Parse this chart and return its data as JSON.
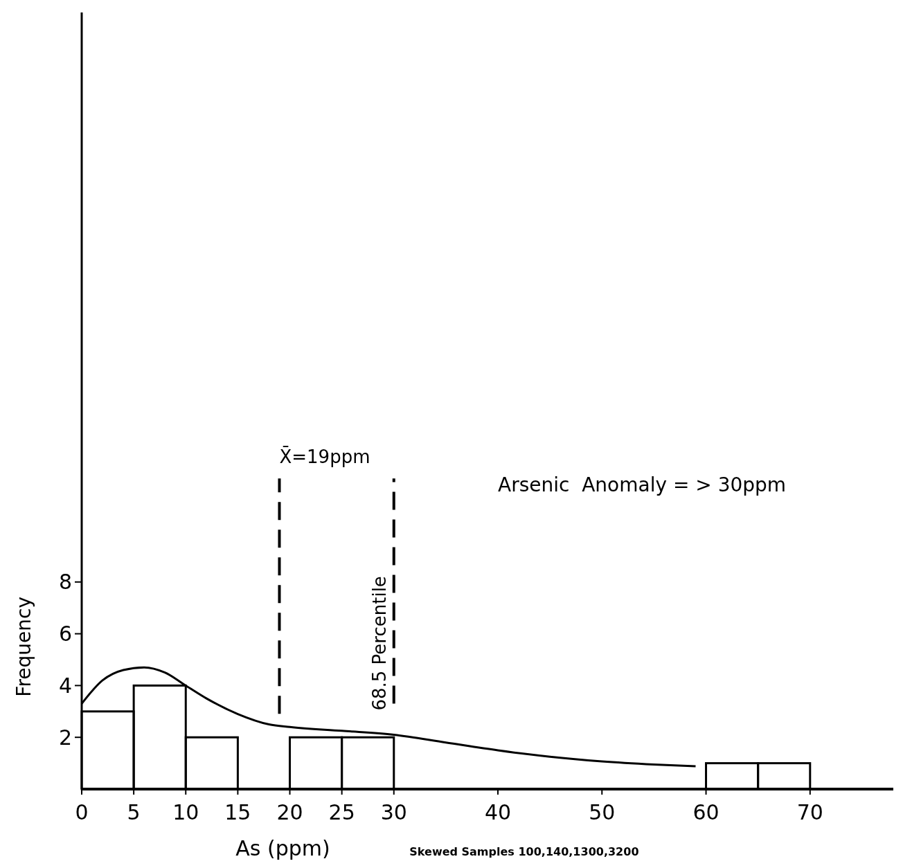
{
  "chart_data": {
    "type": "histogram",
    "xlabel": "As (ppm)",
    "ylabel": "Frequency",
    "bins": [
      0,
      5,
      10,
      15,
      20,
      25,
      30,
      35,
      40,
      45,
      50,
      55,
      60,
      65,
      70
    ],
    "values": [
      3,
      4,
      2,
      0,
      2,
      2,
      0,
      0,
      0,
      0,
      0,
      0,
      1,
      1
    ],
    "color": "#000000",
    "series": [
      {
        "type": "line",
        "color": "#000000",
        "x": [
          0,
          2,
          4,
          6,
          8,
          10,
          12,
          15,
          18,
          20,
          25,
          30,
          35,
          40,
          45,
          50,
          55,
          59
        ],
        "values": [
          3.3,
          4.2,
          4.6,
          4.7,
          4.5,
          4.0,
          3.5,
          2.9,
          2.5,
          2.4,
          2.25,
          2.1,
          1.8,
          1.5,
          1.25,
          1.07,
          0.95,
          0.88
        ]
      }
    ],
    "xlim": [
      0,
      78
    ],
    "ylim": [
      0,
      30
    ],
    "xticks": [
      0,
      5,
      10,
      15,
      20,
      25,
      30,
      40,
      50,
      60,
      70
    ],
    "yticks": [
      2,
      4,
      6,
      8
    ],
    "ref_lines": [
      {
        "axis": "x",
        "value": 19,
        "label": "X̄=19ppm",
        "line_style": "dashed"
      },
      {
        "axis": "x",
        "value": 30,
        "label": "68.5 Percentile",
        "line_style": "dashed"
      }
    ],
    "annotations": [
      "Arsenic  Anomaly = > 30ppm",
      "Skewed Samples 100,140,1300,3200"
    ],
    "grid": false
  }
}
